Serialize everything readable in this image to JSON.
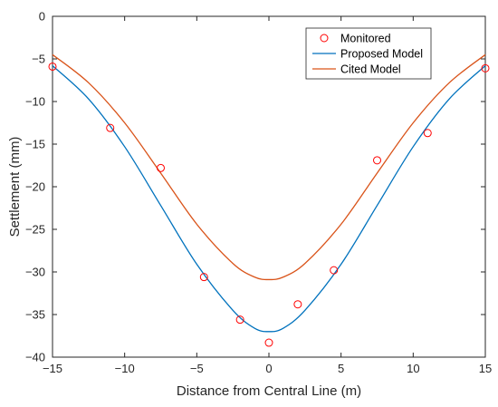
{
  "chart_data": {
    "type": "line",
    "title": "",
    "xlabel": "Distance from Central Line (m)",
    "ylabel": "Settlement (mm)",
    "xlim": [
      -15,
      15
    ],
    "ylim": [
      -40,
      0
    ],
    "xticks": [
      -15,
      -10,
      -5,
      0,
      5,
      10,
      15
    ],
    "yticks": [
      0,
      -5,
      -10,
      -15,
      -20,
      -25,
      -30,
      -35,
      -40
    ],
    "xtick_labels": [
      "−15",
      "−10",
      "−5",
      "0",
      "5",
      "10",
      "15"
    ],
    "ytick_labels": [
      "0",
      "−5",
      "−10",
      "−15",
      "−20",
      "−25",
      "−30",
      "−35",
      "−40"
    ],
    "grid": false,
    "legend_position": "top-right",
    "series": [
      {
        "name": "Monitored",
        "kind": "scatter",
        "color": "#ff0000",
        "x": [
          -15,
          -11,
          -7.5,
          -4.5,
          -2,
          0,
          2,
          4.5,
          7.5,
          11,
          15
        ],
        "y": [
          -5.9,
          -13.1,
          -17.8,
          -30.6,
          -35.6,
          -38.3,
          -33.8,
          -29.8,
          -16.9,
          -13.7,
          -6.1
        ]
      },
      {
        "name": "Proposed Model",
        "kind": "line",
        "color": "#0072bd",
        "x": [
          -15,
          -12.5,
          -10,
          -7.5,
          -5,
          -2.5,
          -1,
          0,
          1,
          2.5,
          5,
          7.5,
          10,
          12.5,
          15
        ],
        "y": [
          -5.8,
          -9.7,
          -15.3,
          -22.2,
          -29.1,
          -34.5,
          -36.6,
          -37.0,
          -36.6,
          -34.5,
          -29.1,
          -22.2,
          -15.3,
          -9.7,
          -5.8
        ]
      },
      {
        "name": "Cited Model",
        "kind": "line",
        "color": "#d95319",
        "x": [
          -15,
          -12.5,
          -10,
          -7.5,
          -5,
          -2.5,
          -1,
          0,
          1,
          2.5,
          5,
          7.5,
          10,
          12.5,
          15
        ],
        "y": [
          -4.5,
          -7.8,
          -12.5,
          -18.4,
          -24.4,
          -29.0,
          -30.6,
          -30.9,
          -30.6,
          -29.0,
          -24.4,
          -18.4,
          -12.5,
          -7.8,
          -4.5
        ]
      }
    ]
  }
}
